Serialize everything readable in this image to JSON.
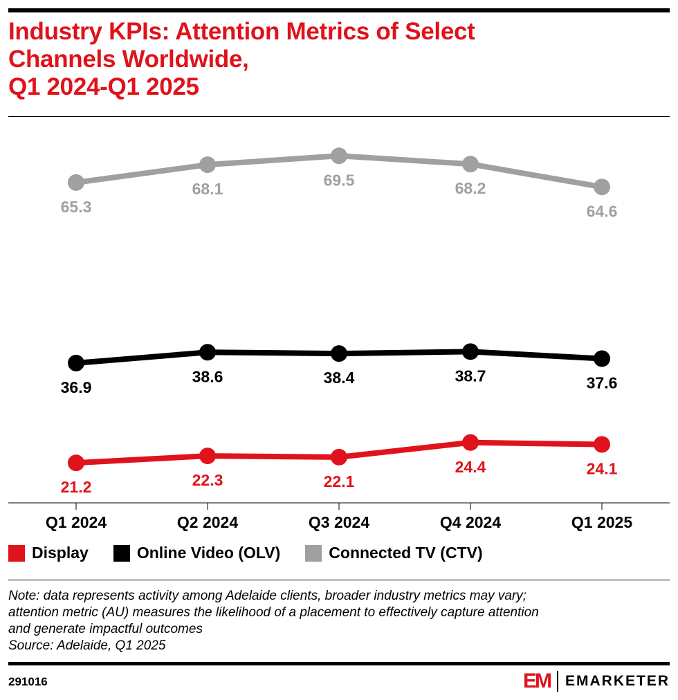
{
  "header": {
    "title_lines": [
      "Industry KPIs: Attention Metrics of Select",
      "Channels Worldwide,",
      "Q1 2024-Q1 2025"
    ]
  },
  "chart_data": {
    "type": "line",
    "categories": [
      "Q1 2024",
      "Q2 2024",
      "Q3 2024",
      "Q4 2024",
      "Q1 2025"
    ],
    "series": [
      {
        "name": "Display",
        "color": "#e0121b",
        "values": [
          21.2,
          22.3,
          22.1,
          24.4,
          24.1
        ]
      },
      {
        "name": "Online Video (OLV)",
        "color": "#000000",
        "values": [
          36.9,
          38.6,
          38.4,
          38.7,
          37.6
        ]
      },
      {
        "name": "Connected TV (CTV)",
        "color": "#a0a0a0",
        "values": [
          65.3,
          68.1,
          69.5,
          68.2,
          64.6
        ]
      }
    ],
    "data_labels": true,
    "grid": false,
    "legend_placement": "bottom-left"
  },
  "footer": {
    "note_lines": [
      "Note: data represents activity among Adelaide clients, broader industry metrics may vary;",
      "attention metric (AU) measures the likelihood of a placement to effectively capture attention",
      "and generate impactful outcomes",
      "Source: Adelaide, Q1 2025"
    ],
    "chart_id": "291016",
    "brand": "EMARKETER",
    "brand_mark": "EM"
  }
}
